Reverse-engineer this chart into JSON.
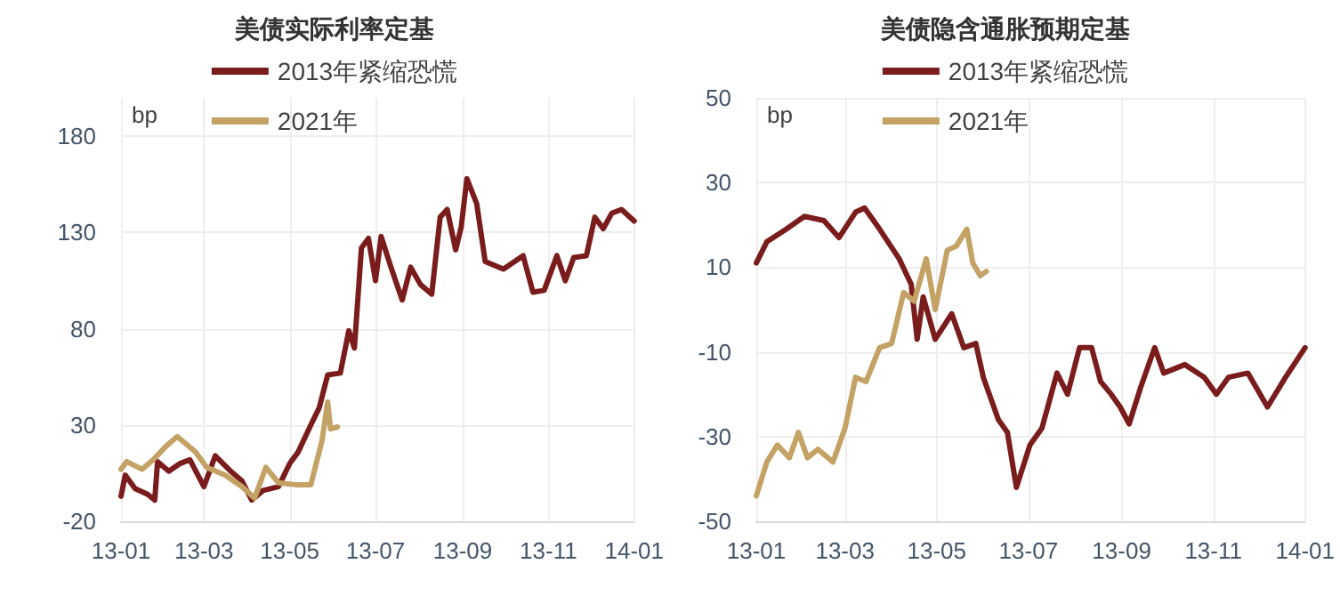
{
  "chart_data": [
    {
      "type": "line",
      "title": "美债实际利率定基",
      "ylabel": "bp",
      "xlim": [
        "2013-01-01",
        "2014-01-01"
      ],
      "xticks": [
        {
          "value": "2013-01-01",
          "label": "13-01"
        },
        {
          "value": "2013-03-01",
          "label": "13-03"
        },
        {
          "value": "2013-05-01",
          "label": "13-05"
        },
        {
          "value": "2013-07-01",
          "label": "13-07"
        },
        {
          "value": "2013-09-01",
          "label": "13-09"
        },
        {
          "value": "2013-11-01",
          "label": "13-11"
        },
        {
          "value": "2014-01-01",
          "label": "14-01"
        }
      ],
      "ylim": [
        -20,
        200
      ],
      "yticks": [
        -20,
        30,
        80,
        130,
        180
      ],
      "grid": true,
      "legend": "top",
      "marker": "none",
      "line_style": "solid",
      "series": [
        {
          "name": "2013年紧缩恐慌",
          "color": "#7b1c1c",
          "x": [
            "2013-01-01",
            "2013-01-04",
            "2013-01-11",
            "2013-01-20",
            "2013-01-25",
            "2013-01-27",
            "2013-02-04",
            "2013-02-12",
            "2013-02-19",
            "2013-03-01",
            "2013-03-09",
            "2013-03-20",
            "2013-03-28",
            "2013-04-04",
            "2013-04-12",
            "2013-04-23",
            "2013-05-01",
            "2013-05-07",
            "2013-05-16",
            "2013-05-22",
            "2013-05-28",
            "2013-06-06",
            "2013-06-12",
            "2013-06-16",
            "2013-06-21",
            "2013-06-26",
            "2013-07-01",
            "2013-07-05",
            "2013-07-12",
            "2013-07-20",
            "2013-07-26",
            "2013-08-02",
            "2013-08-10",
            "2013-08-16",
            "2013-08-21",
            "2013-08-27",
            "2013-08-31",
            "2013-09-04",
            "2013-09-11",
            "2013-09-17",
            "2013-09-30",
            "2013-10-14",
            "2013-10-21",
            "2013-10-29",
            "2013-11-07",
            "2013-11-13",
            "2013-11-19",
            "2013-11-28",
            "2013-12-04",
            "2013-12-10",
            "2013-12-16",
            "2013-12-23",
            "2014-01-01"
          ],
          "values": [
            -7,
            4,
            -3,
            -6,
            -9,
            11,
            6,
            10,
            12,
            -2,
            14,
            6,
            1,
            -9,
            -4,
            -2,
            10,
            16,
            30,
            39,
            56,
            57,
            79,
            70,
            122,
            127,
            105,
            128,
            112,
            95,
            112,
            103,
            98,
            138,
            142,
            121,
            133,
            158,
            145,
            115,
            111,
            118,
            99,
            100,
            118,
            105,
            117,
            118,
            138,
            132,
            140,
            142,
            136
          ]
        },
        {
          "name": "2021年",
          "color": "#c4a265",
          "x": [
            "2013-01-01",
            "2013-01-05",
            "2013-01-16",
            "2013-01-24",
            "2013-02-02",
            "2013-02-10",
            "2013-02-23",
            "2013-03-03",
            "2013-03-16",
            "2013-03-28",
            "2013-04-06",
            "2013-04-14",
            "2013-04-23",
            "2013-05-05",
            "2013-05-16",
            "2013-05-24",
            "2013-05-28",
            "2013-05-30",
            "2013-06-04"
          ],
          "values": [
            7,
            11,
            7,
            12,
            19,
            24,
            16,
            8,
            4,
            -2,
            -8,
            8,
            0,
            -1,
            -1,
            22,
            42,
            28,
            29
          ]
        }
      ]
    },
    {
      "type": "line",
      "title": "美债隐含通胀预期定基",
      "ylabel": "bp",
      "xlim": [
        "2013-01-01",
        "2014-01-01"
      ],
      "xticks": [
        {
          "value": "2013-01-01",
          "label": "13-01"
        },
        {
          "value": "2013-03-01",
          "label": "13-03"
        },
        {
          "value": "2013-05-01",
          "label": "13-05"
        },
        {
          "value": "2013-07-01",
          "label": "13-07"
        },
        {
          "value": "2013-09-01",
          "label": "13-09"
        },
        {
          "value": "2013-11-01",
          "label": "13-11"
        },
        {
          "value": "2014-01-01",
          "label": "14-01"
        }
      ],
      "ylim": [
        -50,
        50
      ],
      "yticks": [
        -50,
        -30,
        -10,
        10,
        30,
        50
      ],
      "grid": true,
      "legend": "top",
      "marker": "none",
      "line_style": "solid",
      "series": [
        {
          "name": "2013年紧缩恐慌",
          "color": "#7b1c1c",
          "x": [
            "2013-01-01",
            "2013-01-08",
            "2013-01-21",
            "2013-02-02",
            "2013-02-15",
            "2013-02-25",
            "2013-03-08",
            "2013-03-14",
            "2013-03-24",
            "2013-04-06",
            "2013-04-14",
            "2013-04-18",
            "2013-04-22",
            "2013-04-30",
            "2013-05-11",
            "2013-05-19",
            "2013-05-27",
            "2013-06-01",
            "2013-06-11",
            "2013-06-17",
            "2013-06-23",
            "2013-07-02",
            "2013-07-10",
            "2013-07-20",
            "2013-07-27",
            "2013-08-04",
            "2013-08-12",
            "2013-08-18",
            "2013-08-25",
            "2013-08-31",
            "2013-09-06",
            "2013-09-14",
            "2013-09-23",
            "2013-09-29",
            "2013-10-13",
            "2013-10-26",
            "2013-11-03",
            "2013-11-11",
            "2013-11-24",
            "2013-12-07",
            "2013-12-19",
            "2014-01-01"
          ],
          "values": [
            11,
            16,
            19,
            22,
            21,
            17,
            23,
            24,
            19,
            12,
            6,
            -7,
            3,
            -7,
            -1,
            -9,
            -8,
            -16,
            -26,
            -29,
            -42,
            -32,
            -28,
            -15,
            -20,
            -9,
            -9,
            -17,
            -20,
            -23,
            -27,
            -18,
            -9,
            -15,
            -13,
            -16,
            -20,
            -16,
            -15,
            -23,
            -16,
            -9
          ]
        },
        {
          "name": "2021年",
          "color": "#c4a265",
          "x": [
            "2013-01-01",
            "2013-01-08",
            "2013-01-15",
            "2013-01-23",
            "2013-01-29",
            "2013-02-04",
            "2013-02-11",
            "2013-02-21",
            "2013-03-01",
            "2013-03-08",
            "2013-03-15",
            "2013-03-24",
            "2013-04-01",
            "2013-04-09",
            "2013-04-16",
            "2013-04-24",
            "2013-04-30",
            "2013-05-08",
            "2013-05-14",
            "2013-05-21",
            "2013-05-25",
            "2013-05-30",
            "2013-06-03"
          ],
          "values": [
            -44,
            -36,
            -32,
            -35,
            -29,
            -35,
            -33,
            -36,
            -28,
            -16,
            -17,
            -9,
            -8,
            4,
            2,
            12,
            0,
            14,
            15,
            19,
            11,
            8,
            9
          ]
        }
      ]
    }
  ]
}
